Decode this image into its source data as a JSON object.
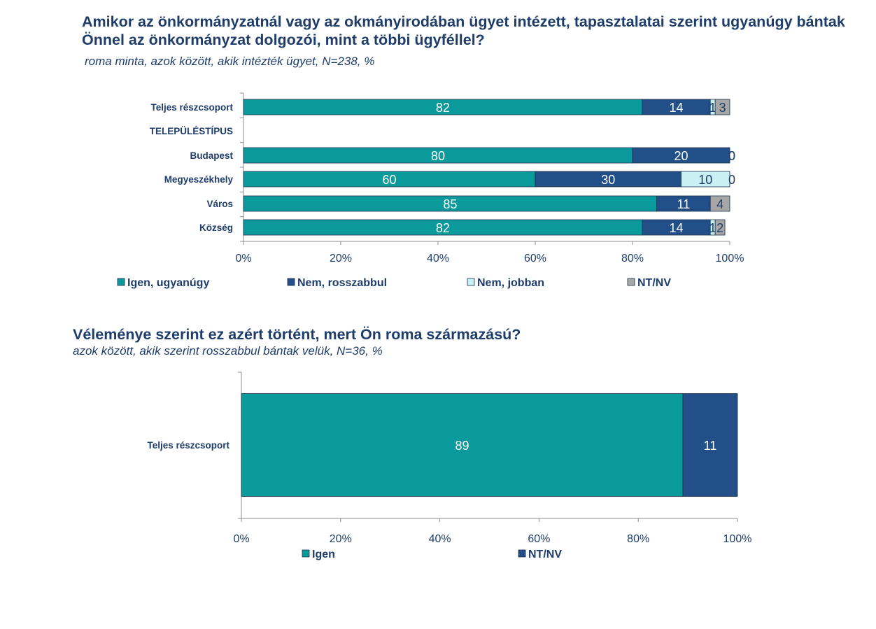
{
  "chart1": {
    "title": "Amikor az önkormányzatnál vagy az okmányirodában ügyet intézett, tapasztalatai szerint ugyanúgy bántak Önnel az önkormányzat dolgozói, mint a többi ügyféllel?",
    "subtitle": "roma minta, azok között, akik intézték ügyet, N=238, %"
  },
  "chart2": {
    "title": "Véleménye szerint ez azért történt, mert Ön roma származású?",
    "subtitle": "azok között, akik szerint rosszabbul bántak velük, N=36, %"
  },
  "colors": {
    "teal": "#0a9a9c",
    "navy": "#234f88",
    "light": "#c9f1f4",
    "gray": "#a7a7a7",
    "text": "#1f3d6b"
  },
  "chart_data": [
    {
      "type": "bar",
      "orientation": "horizontal-stacked-100",
      "title": "Amikor az önkormányzatnál vagy az okmányirodában ügyet intézett, tapasztalatai szerint ugyanúgy bántak Önnel az önkormányzat dolgozói, mint a többi ügyféllel?",
      "categories": [
        "Teljes részcsoport",
        "TELEPÜLÉSTÍPUS",
        "Budapest",
        "Megyeszékhely",
        "Város",
        "Község"
      ],
      "series": [
        {
          "name": "Igen, ugyanúgy",
          "values": [
            82,
            null,
            80,
            60,
            85,
            82
          ]
        },
        {
          "name": "Nem, rosszabbul",
          "values": [
            14,
            null,
            20,
            30,
            11,
            14
          ]
        },
        {
          "name": "Nem, jobban",
          "values": [
            1,
            null,
            0,
            10,
            0,
            1
          ]
        },
        {
          "name": "NT/NV",
          "values": [
            3,
            null,
            0,
            0,
            4,
            2
          ]
        }
      ],
      "xticks": [
        "0%",
        "20%",
        "40%",
        "60%",
        "80%",
        "100%"
      ],
      "xlim": [
        0,
        100
      ],
      "legend_position": "bottom"
    },
    {
      "type": "bar",
      "orientation": "horizontal-stacked-100",
      "title": "Véleménye szerint ez azért történt, mert Ön roma származású?",
      "categories": [
        "Teljes részcsoport"
      ],
      "series": [
        {
          "name": "Igen",
          "values": [
            89
          ]
        },
        {
          "name": "NT/NV",
          "values": [
            11
          ]
        }
      ],
      "xticks": [
        "0%",
        "20%",
        "40%",
        "60%",
        "80%",
        "100%"
      ],
      "xlim": [
        0,
        100
      ],
      "legend_position": "bottom"
    }
  ]
}
